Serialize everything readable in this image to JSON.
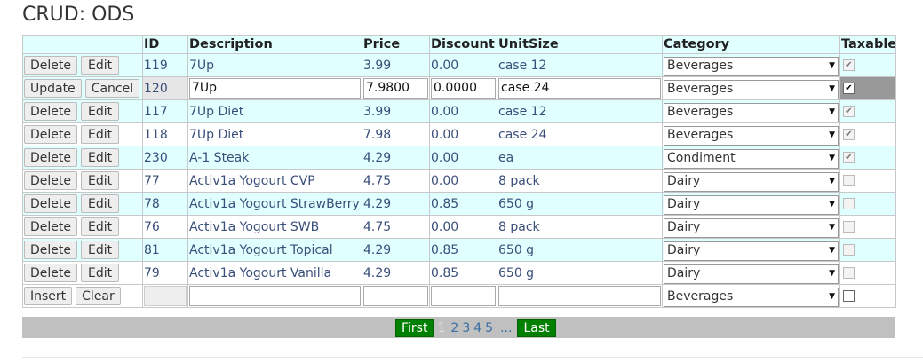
{
  "title": "CRUD: ODS",
  "columns": [
    "",
    "ID",
    "Description",
    "Price",
    "Discount",
    "UnitSize",
    "Category",
    "Taxable"
  ],
  "buttons": {
    "delete": "Delete",
    "edit": "Edit",
    "update": "Update",
    "cancel": "Cancel",
    "insert": "Insert",
    "clear": "Clear"
  },
  "rows": [
    {
      "id": "119",
      "desc": "7Up",
      "price": "3.99",
      "discount": "0.00",
      "unit": "case 12",
      "category": "Beverages",
      "taxable": true
    },
    {
      "id": "120",
      "desc": "7Up",
      "price": "7.9800",
      "discount": "0.0000",
      "unit": "case 24",
      "category": "Beverages",
      "taxable": true,
      "editing": true
    },
    {
      "id": "117",
      "desc": "7Up Diet",
      "price": "3.99",
      "discount": "0.00",
      "unit": "case 12",
      "category": "Beverages",
      "taxable": true
    },
    {
      "id": "118",
      "desc": "7Up Diet",
      "price": "7.98",
      "discount": "0.00",
      "unit": "case 24",
      "category": "Beverages",
      "taxable": true
    },
    {
      "id": "230",
      "desc": "A-1 Steak",
      "price": "4.29",
      "discount": "0.00",
      "unit": "ea",
      "category": "Condiment",
      "taxable": true
    },
    {
      "id": "77",
      "desc": "Activ1a Yogourt CVP",
      "price": "4.75",
      "discount": "0.00",
      "unit": "8 pack",
      "category": "Dairy",
      "taxable": false
    },
    {
      "id": "78",
      "desc": "Activ1a Yogourt StrawBerry",
      "price": "4.29",
      "discount": "0.85",
      "unit": "650 g",
      "category": "Dairy",
      "taxable": false
    },
    {
      "id": "76",
      "desc": "Activ1a Yogourt SWB",
      "price": "4.75",
      "discount": "0.00",
      "unit": "8 pack",
      "category": "Dairy",
      "taxable": false
    },
    {
      "id": "81",
      "desc": "Activ1a Yogourt Topical",
      "price": "4.29",
      "discount": "0.85",
      "unit": "650 g",
      "category": "Dairy",
      "taxable": false
    },
    {
      "id": "79",
      "desc": "Activ1a Yogourt Vanilla",
      "price": "4.29",
      "discount": "0.85",
      "unit": "650 g",
      "category": "Dairy",
      "taxable": false
    }
  ],
  "insert_row": {
    "category": "Beverages",
    "taxable": false
  },
  "pager": {
    "first": "First",
    "current": "1",
    "pages": [
      "2",
      "3",
      "4",
      "5"
    ],
    "more": "...",
    "last": "Last"
  }
}
